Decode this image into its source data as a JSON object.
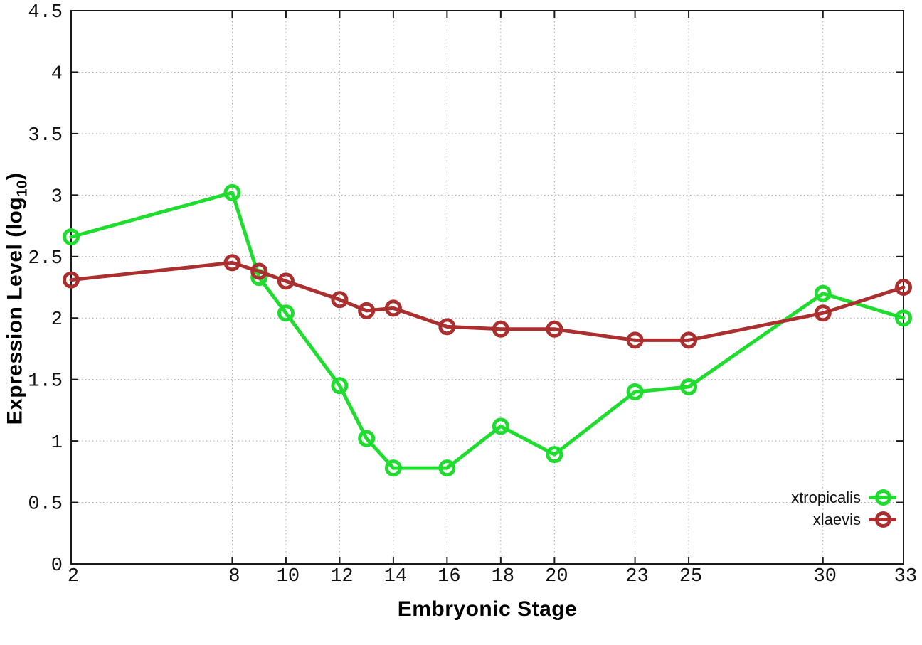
{
  "page": {
    "background": "#ffffff"
  },
  "chart_data": {
    "type": "line",
    "title": "",
    "xlabel": "Embryonic Stage",
    "ylabel": "Expression Level (log10)",
    "ylabel_parts": {
      "main": "Expression Level (log",
      "sub": "10",
      "close": ")"
    },
    "xlim": [
      2,
      33
    ],
    "ylim": [
      0,
      4.5
    ],
    "grid": true,
    "grid_style": "dotted",
    "legend_position": "inside-bottom-right",
    "x": [
      2,
      8,
      9,
      10,
      12,
      13,
      14,
      16,
      18,
      20,
      23,
      25,
      30,
      33
    ],
    "xticks": [
      2,
      8,
      10,
      12,
      14,
      16,
      18,
      20,
      23,
      25,
      30,
      33
    ],
    "yticks": [
      "0",
      "0.5",
      "1",
      "1.5",
      "2",
      "2.5",
      "3",
      "3.5",
      "4",
      "4.5"
    ],
    "series": [
      {
        "name": "xtropicalis",
        "color": "#1edd2e",
        "marker": "open-circle",
        "values": [
          2.66,
          3.02,
          2.33,
          2.04,
          1.45,
          1.02,
          0.78,
          0.78,
          1.12,
          0.89,
          1.4,
          1.44,
          2.2,
          2.0
        ]
      },
      {
        "name": "xlaevis",
        "color": "#ab2f2f",
        "marker": "open-circle",
        "values": [
          2.31,
          2.45,
          2.38,
          2.3,
          2.15,
          2.06,
          2.08,
          1.93,
          1.91,
          1.91,
          1.82,
          1.82,
          2.04,
          2.25
        ]
      }
    ],
    "axis_color": "#1a1a1a",
    "grid_color": "#aaaaaa",
    "tick_label_color": "#111111"
  }
}
